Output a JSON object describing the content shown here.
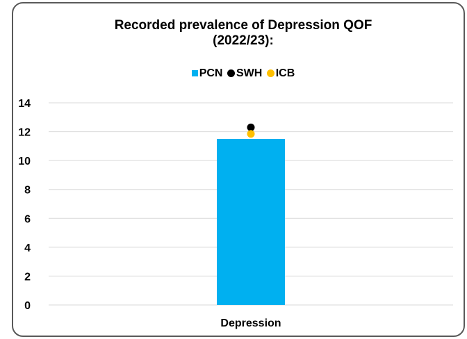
{
  "chart_data": {
    "type": "bar",
    "title": "Recorded prevalence of Depression QOF (2022/23):",
    "title_lines": [
      "Recorded prevalence of Depression QOF",
      "(2022/23):"
    ],
    "categories": [
      "Depression"
    ],
    "series": [
      {
        "name": "PCN",
        "values": [
          11.5
        ],
        "kind": "bar",
        "color": "#00B0F0",
        "marker": "square"
      },
      {
        "name": "SWH",
        "values": [
          12.3
        ],
        "kind": "point",
        "color": "#000000",
        "marker": "circle"
      },
      {
        "name": "ICB",
        "values": [
          11.85
        ],
        "kind": "point",
        "color": "#FFC000",
        "marker": "circle"
      }
    ],
    "yticks": [
      "0",
      "2",
      "4",
      "6",
      "8",
      "10",
      "12",
      "14"
    ],
    "ylim": [
      0,
      14
    ],
    "grid": true,
    "legend_position": "top"
  }
}
